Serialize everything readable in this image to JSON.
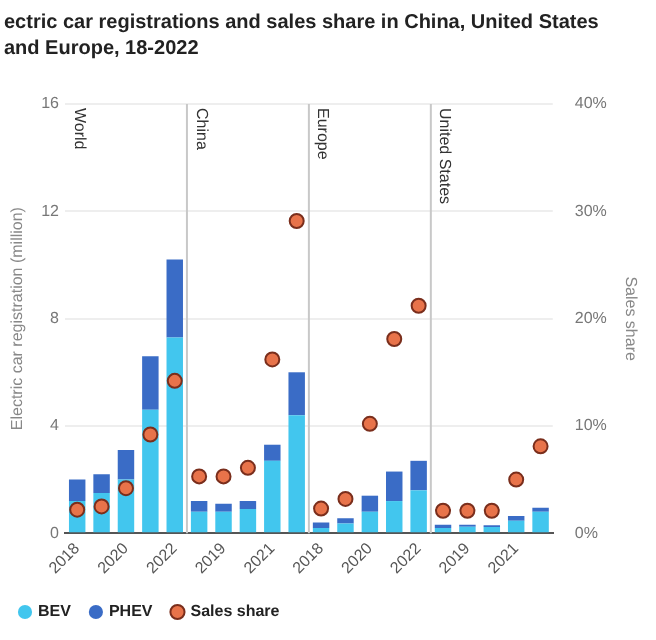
{
  "chart_data": {
    "type": "bar",
    "title": "ectric car registrations and sales share in China, United States and Europe, 18-2022",
    "categories": [
      "2018",
      null,
      "2020",
      null,
      "2022",
      null,
      "2019",
      null,
      "2021",
      null,
      "2018",
      null,
      "2020",
      null,
      "2022",
      null,
      "2019",
      null,
      "2021",
      null
    ],
    "stacked": true,
    "series": [
      {
        "name": "BEV",
        "color": "#42c6ee",
        "values": [
          1.2,
          1.5,
          2.0,
          4.6,
          7.3,
          0.8,
          0.8,
          0.9,
          2.7,
          4.4,
          0.2,
          0.36,
          0.8,
          1.2,
          1.6,
          0.2,
          0.24,
          0.23,
          0.47,
          0.8
        ]
      },
      {
        "name": "PHEV",
        "color": "#3a6cc6",
        "values": [
          0.8,
          0.7,
          1.1,
          2.0,
          2.9,
          0.4,
          0.3,
          0.3,
          0.6,
          1.6,
          0.2,
          0.2,
          0.6,
          1.1,
          1.1,
          0.12,
          0.08,
          0.07,
          0.17,
          0.15
        ]
      },
      {
        "name": "Sales share",
        "type": "scatter",
        "axis": "y2",
        "color": "#e8734a",
        "values": [
          2.2,
          2.5,
          4.2,
          9.2,
          14.2,
          5.3,
          5.3,
          6.1,
          16.2,
          29.1,
          2.3,
          3.2,
          10.2,
          18.1,
          21.2,
          2.1,
          2.1,
          2.1,
          5.0,
          8.1
        ]
      }
    ],
    "ylabel": "Electric car registration (million)",
    "y2label": "Sales share",
    "ylim": [
      0,
      16
    ],
    "yticks": [
      0,
      4,
      8,
      12,
      16
    ],
    "y2lim": [
      0,
      40
    ],
    "y2ticks": [
      {
        "value": 0,
        "label": "0%"
      },
      {
        "value": 10,
        "label": "10%"
      },
      {
        "value": 20,
        "label": "20%"
      },
      {
        "value": 30,
        "label": "30%"
      },
      {
        "value": 40,
        "label": "40%"
      }
    ],
    "annotations": [
      "World",
      "China",
      "Europe",
      "United States"
    ],
    "grid": "y",
    "legend": "bottom"
  }
}
